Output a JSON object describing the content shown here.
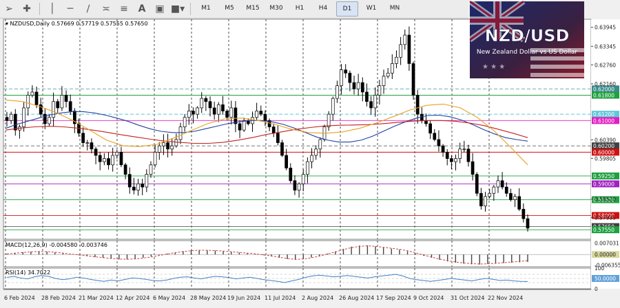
{
  "toolbar": {
    "timeframes": [
      "M1",
      "M5",
      "M15",
      "M30",
      "H1",
      "H4",
      "D1",
      "W1",
      "MN"
    ],
    "active_timeframe": "D1",
    "tools": [
      "cursor-icon",
      "crosshair-icon",
      "vertical-line-icon",
      "horizontal-line-icon",
      "trendline-icon",
      "channel-icon",
      "fibonacci-icon",
      "text-icon",
      "label-icon",
      "shapes-icon"
    ]
  },
  "overlay": {
    "title": "NZD/USD",
    "subtitle": "New Zealand Dollar vs US Dollar"
  },
  "colors": {
    "bull": "#ffffff",
    "bear": "#000000",
    "ma_blue": "#2040a0",
    "ma_red": "#c02020",
    "ma_orange": "#e8a020",
    "macd_signal": "#d04040",
    "rsi": "#4080c0"
  },
  "chart_data": {
    "type": "candlestick",
    "header": {
      "symbol": "NZDUSD,Daily",
      "open": "0.57669",
      "high": "0.57719",
      "low": "0.57555",
      "close": "0.57650"
    },
    "y_range": [
      0.5725,
      0.642
    ],
    "price_ticks": [
      "0.63945",
      "0.63345",
      "0.62760",
      "0.62160",
      "0.60390",
      "0.59805",
      "0.58520",
      "0.57935"
    ],
    "levels": [
      {
        "label": "0.62000",
        "price": 0.62,
        "color": "#5aa0a0",
        "style": "dashed",
        "label_bg": "#3a8a8a"
      },
      {
        "label": "0.61800",
        "price": 0.618,
        "color": "#20a040",
        "style": "solid",
        "label_bg": "#20a040"
      },
      {
        "label": "0.61200",
        "price": 0.612,
        "color": "#60c8d8",
        "style": "dashed",
        "label_bg": "#60c8d8"
      },
      {
        "label": "0.61000",
        "price": 0.61,
        "color": "#e020c0",
        "style": "solid",
        "label_bg": "#e020c0"
      },
      {
        "label": "0.60200",
        "price": 0.602,
        "color": "#606060",
        "style": "dashed",
        "label_bg": "#404040"
      },
      {
        "label": "0.60000",
        "price": 0.6,
        "color": "#d01010",
        "style": "solid",
        "label_bg": "#d01010"
      },
      {
        "label": "0.59250",
        "price": 0.5925,
        "color": "#20a040",
        "style": "solid",
        "label_bg": "#20a040"
      },
      {
        "label": "0.59000",
        "price": 0.59,
        "color": "#a020c0",
        "style": "solid",
        "label_bg": "#a020c0"
      },
      {
        "label": "0.58500",
        "price": 0.585,
        "color": "#20a040",
        "style": "solid",
        "label_bg": "#20a040"
      },
      {
        "label": "0.58000",
        "price": 0.58,
        "color": "#d01010",
        "style": "solid",
        "label_bg": "#d01010"
      },
      {
        "label": "0.57650",
        "price": 0.5765,
        "color": "#606060",
        "style": "solid",
        "label_bg": "#404040"
      },
      {
        "label": "0.57550",
        "price": 0.5755,
        "color": "#20a040",
        "style": "solid",
        "label_bg": "#20a040"
      }
    ],
    "x_labels": [
      "6 Feb 2024",
      "28 Feb 2024",
      "21 Mar 2024",
      "12 Apr 2024",
      "6 May 2024",
      "28 May 2024",
      "19 Jun 2024",
      "11 Jul 2024",
      "2 Aug 2024",
      "26 Aug 2024",
      "17 Sep 2024",
      "9 Oct 2024",
      "31 Oct 2024",
      "22 Nov 2024"
    ],
    "close_series": [
      0.61,
      0.612,
      0.607,
      0.608,
      0.614,
      0.618,
      0.619,
      0.615,
      0.612,
      0.609,
      0.611,
      0.616,
      0.614,
      0.618,
      0.616,
      0.613,
      0.609,
      0.606,
      0.603,
      0.603,
      0.601,
      0.599,
      0.597,
      0.598,
      0.596,
      0.599,
      0.6,
      0.596,
      0.593,
      0.589,
      0.588,
      0.59,
      0.589,
      0.593,
      0.596,
      0.6,
      0.602,
      0.603,
      0.601,
      0.602,
      0.604,
      0.608,
      0.611,
      0.613,
      0.612,
      0.614,
      0.617,
      0.616,
      0.614,
      0.612,
      0.615,
      0.613,
      0.611,
      0.614,
      0.609,
      0.607,
      0.61,
      0.609,
      0.611,
      0.613,
      0.612,
      0.61,
      0.608,
      0.606,
      0.603,
      0.599,
      0.595,
      0.591,
      0.588,
      0.59,
      0.593,
      0.597,
      0.599,
      0.601,
      0.604,
      0.608,
      0.612,
      0.617,
      0.621,
      0.626,
      0.625,
      0.622,
      0.62,
      0.622,
      0.619,
      0.616,
      0.614,
      0.618,
      0.621,
      0.624,
      0.625,
      0.628,
      0.63,
      0.634,
      0.637,
      0.628,
      0.618,
      0.612,
      0.61,
      0.609,
      0.606,
      0.604,
      0.602,
      0.6,
      0.598,
      0.597,
      0.598,
      0.601,
      0.601,
      0.597,
      0.593,
      0.587,
      0.583,
      0.586,
      0.587,
      0.589,
      0.591,
      0.589,
      0.587,
      0.585,
      0.586,
      0.582,
      0.579,
      0.576
    ],
    "moving_averages": [
      {
        "name": "MA blue",
        "color": "#2040a0",
        "values": [
          0.6075,
          0.6088,
          0.6098,
          0.6108,
          0.6118,
          0.6124,
          0.6128,
          0.6128,
          0.6124,
          0.6117,
          0.6108,
          0.6098,
          0.6085,
          0.6074,
          0.6066,
          0.6062,
          0.6062,
          0.6066,
          0.6074,
          0.6082,
          0.609,
          0.6096,
          0.61,
          0.61,
          0.6096,
          0.6088,
          0.6076,
          0.6062,
          0.6048,
          0.6038,
          0.6032,
          0.6032,
          0.6038,
          0.605,
          0.6066,
          0.6082,
          0.6096,
          0.6108,
          0.6116,
          0.6117,
          0.6112,
          0.6102,
          0.6088,
          0.6072,
          0.6058,
          0.6046,
          0.604,
          0.6035
        ]
      },
      {
        "name": "MA red",
        "color": "#c02020",
        "values": [
          0.607,
          0.6076,
          0.608,
          0.6082,
          0.608,
          0.6076,
          0.607,
          0.6063,
          0.6055,
          0.6048,
          0.6041,
          0.6035,
          0.6031,
          0.6028,
          0.6028,
          0.6031,
          0.6038,
          0.6046,
          0.6056,
          0.6064,
          0.6072,
          0.6078,
          0.6083,
          0.6085,
          0.6086,
          0.6087,
          0.609,
          0.6094,
          0.6098,
          0.61,
          0.61,
          0.6098,
          0.6092,
          0.6084,
          0.6072,
          0.606,
          0.6046
        ]
      },
      {
        "name": "MA orange",
        "color": "#e8a020",
        "values": [
          0.6165,
          0.616,
          0.6145,
          0.6125,
          0.61,
          0.607,
          0.6038,
          0.602,
          0.6018,
          0.6025,
          0.6045,
          0.6068,
          0.609,
          0.6105,
          0.6108,
          0.61,
          0.6088,
          0.6072,
          0.6062,
          0.606,
          0.6064,
          0.6075,
          0.6092,
          0.6112,
          0.6133,
          0.6148,
          0.6152,
          0.614,
          0.611,
          0.6068,
          0.6015,
          0.596
        ]
      }
    ],
    "macd": {
      "label": "MACD(12,26,9) -0.004580 -0.003746",
      "ticks": [
        "0.007031",
        "0.00000",
        "-0.006355"
      ],
      "y_range": [
        -0.0075,
        0.0085
      ],
      "histogram": [
        0.0005,
        0.001,
        0.0014,
        0.0018,
        0.002,
        0.0018,
        0.0013,
        0.0007,
        0.0001,
        -0.0005,
        -0.001,
        -0.0016,
        -0.0021,
        -0.0026,
        -0.003,
        -0.003,
        -0.0027,
        -0.002,
        -0.0012,
        -0.0003,
        0.0006,
        0.0014,
        0.0021,
        0.0026,
        0.0028,
        0.0027,
        0.0024,
        0.002,
        0.0016,
        0.0012,
        0.0008,
        0.0003,
        -0.0004,
        -0.0012,
        -0.002,
        -0.0028,
        -0.0033,
        -0.0028,
        -0.0018,
        -0.0008,
        0.0006,
        0.002,
        0.0035,
        0.0048,
        0.0055,
        0.0056,
        0.005,
        0.0043,
        0.0036,
        0.003,
        0.002,
        0.0007,
        -0.0008,
        -0.002,
        -0.0032,
        -0.0042,
        -0.005,
        -0.0056,
        -0.006,
        -0.0061,
        -0.0058,
        -0.0054,
        -0.0052,
        -0.005,
        -0.0048,
        -0.0046
      ],
      "signal": [
        0.0004,
        0.0008,
        0.0012,
        0.0016,
        0.0018,
        0.0017,
        0.0014,
        0.0009,
        0.0003,
        -0.0003,
        -0.0008,
        -0.0014,
        -0.0019,
        -0.0024,
        -0.0028,
        -0.0029,
        -0.0027,
        -0.0022,
        -0.0015,
        -0.0006,
        0.0003,
        0.0011,
        0.0018,
        0.0023,
        0.0026,
        0.0026,
        0.0024,
        0.0021,
        0.0017,
        0.0013,
        0.0009,
        0.0004,
        -0.0002,
        -0.0009,
        -0.0017,
        -0.0024,
        -0.003,
        -0.0028,
        -0.002,
        -0.001,
        0.0003,
        0.0016,
        0.003,
        0.0042,
        0.005,
        0.0053,
        0.005,
        0.0044,
        0.0038,
        0.0032,
        0.0023,
        0.0011,
        -0.0003,
        -0.0016,
        -0.0028,
        -0.0038,
        -0.0046,
        -0.0052,
        -0.0056,
        -0.0058,
        -0.0057,
        -0.0054,
        -0.005,
        -0.0046,
        -0.0042,
        -0.0037
      ]
    },
    "rsi": {
      "label": "RSI(14) 34.7022",
      "ticks": [
        "100",
        "50.0000",
        "0"
      ],
      "levels": [
        70,
        50,
        30
      ],
      "values": [
        55,
        60,
        52,
        48,
        58,
        64,
        60,
        50,
        44,
        48,
        56,
        52,
        46,
        40,
        36,
        42,
        38,
        45,
        52,
        50,
        46,
        40,
        38,
        42,
        50,
        56,
        58,
        52,
        48,
        55,
        60,
        58,
        54,
        48,
        52,
        56,
        50,
        44,
        40,
        36,
        30,
        38,
        45,
        55,
        62,
        66,
        62,
        58,
        60,
        64,
        60,
        56,
        52,
        58,
        62,
        66,
        70,
        62,
        50,
        44,
        40,
        36,
        40,
        45,
        50,
        46,
        42,
        38,
        45,
        50,
        46,
        40,
        42,
        38,
        36,
        35
      ]
    }
  }
}
